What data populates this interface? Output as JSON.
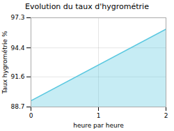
{
  "chart_data": {
    "type": "area",
    "title": "Evolution du taux d'hygrométrie",
    "xlabel": "heure par heure",
    "ylabel": "Taux hygrométrie %",
    "x": [
      0,
      2
    ],
    "values": [
      89.3,
      96.2
    ],
    "color": "#5bc8e0",
    "xlim": [
      0,
      2
    ],
    "xticks": [
      0,
      1,
      2
    ],
    "ylim": [
      88.7,
      97.3
    ],
    "yticks": [
      88.7,
      91.6,
      94.4,
      97.3
    ],
    "grid": true
  }
}
